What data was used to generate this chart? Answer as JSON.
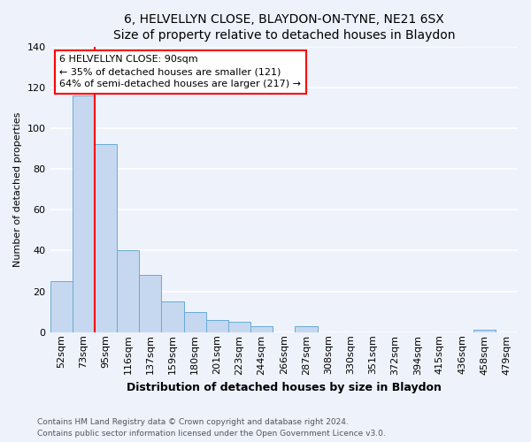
{
  "title": "6, HELVELLYN CLOSE, BLAYDON-ON-TYNE, NE21 6SX",
  "subtitle": "Size of property relative to detached houses in Blaydon",
  "xlabel": "Distribution of detached houses by size in Blaydon",
  "ylabel": "Number of detached properties",
  "categories": [
    "52sqm",
    "73sqm",
    "95sqm",
    "116sqm",
    "137sqm",
    "159sqm",
    "180sqm",
    "201sqm",
    "223sqm",
    "244sqm",
    "266sqm",
    "287sqm",
    "308sqm",
    "330sqm",
    "351sqm",
    "372sqm",
    "394sqm",
    "415sqm",
    "436sqm",
    "458sqm",
    "479sqm"
  ],
  "values": [
    25,
    116,
    92,
    40,
    28,
    15,
    10,
    6,
    5,
    3,
    0,
    3,
    0,
    0,
    0,
    0,
    0,
    0,
    0,
    1,
    0
  ],
  "bar_color": "#c5d8f0",
  "bar_edge_color": "#6aaad4",
  "annotation_text": "6 HELVELLYN CLOSE: 90sqm\n← 35% of detached houses are smaller (121)\n64% of semi-detached houses are larger (217) →",
  "annotation_box_color": "white",
  "annotation_box_edge_color": "red",
  "red_line_color": "red",
  "red_line_x": 1.5,
  "ylim": [
    0,
    140
  ],
  "yticks": [
    0,
    20,
    40,
    60,
    80,
    100,
    120,
    140
  ],
  "footer_line1": "Contains HM Land Registry data © Crown copyright and database right 2024.",
  "footer_line2": "Contains public sector information licensed under the Open Government Licence v3.0.",
  "background_color": "#eef2fb",
  "grid_color": "white",
  "title_fontsize": 10,
  "subtitle_fontsize": 9,
  "xlabel_fontsize": 9,
  "ylabel_fontsize": 8,
  "tick_fontsize": 8,
  "annot_fontsize": 8,
  "footer_fontsize": 6.5
}
